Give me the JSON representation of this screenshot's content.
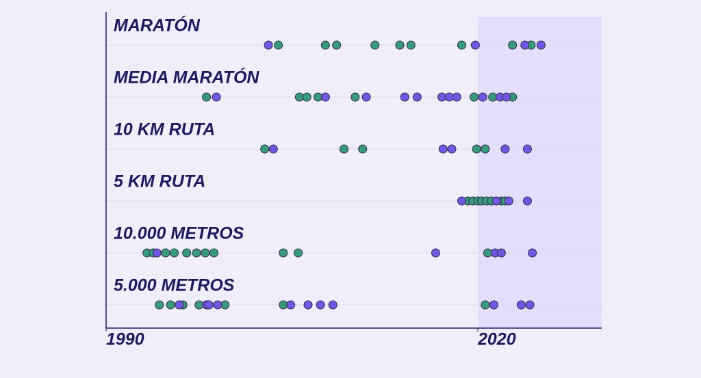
{
  "chart_data": {
    "type": "strip",
    "categories": [
      "MARATÓN",
      "MEDIA MARATÓN",
      "10 KM RUTA",
      "5 KM RUTA",
      "10.000 METROS",
      "5.000 METROS"
    ],
    "xlim": [
      1990,
      2030
    ],
    "xticks": [
      1990,
      2020
    ],
    "series": [
      {
        "color": "#3a9a7e",
        "values": [
          [
            2003.9,
            2007.7,
            2008.6,
            2011.7,
            2013.7,
            2014.6,
            2018.7,
            2022.8,
            2024.3
          ],
          [
            1998.1,
            2005.6,
            2006.2,
            2007.1,
            2010.1,
            2019.7,
            2021.2,
            2022.8
          ],
          [
            2002.8,
            2009.2,
            2010.7,
            2019.9,
            2020.6
          ],
          [
            2019.2,
            2019.6,
            2020.0,
            2020.3,
            2020.7,
            2021.1,
            2021.9,
            2022.2
          ],
          [
            1993.3,
            1993.8,
            1994.8,
            1995.5,
            1996.5,
            1997.3,
            1998.0,
            1998.7,
            2004.3,
            2005.5,
            2020.8
          ],
          [
            1994.3,
            1995.2,
            1996.2,
            1997.5,
            1998.2,
            1999.6,
            2004.3,
            2020.6
          ]
        ]
      },
      {
        "color": "#7158e2",
        "values": [
          [
            2003.1,
            2019.8,
            2023.8,
            2025.1
          ],
          [
            1998.9,
            2007.7,
            2011.0,
            2014.1,
            2015.1,
            2017.1,
            2017.7,
            2018.3,
            2020.4,
            2021.8,
            2022.3
          ],
          [
            2003.5,
            2017.2,
            2017.9,
            2022.2,
            2024.0
          ],
          [
            2018.7,
            2021.5,
            2022.5,
            2024.0
          ],
          [
            1994.1,
            2016.6,
            2021.4,
            2021.9,
            2024.4
          ],
          [
            1995.9,
            1998.1,
            1998.3,
            1999.0,
            2004.9,
            2006.3,
            2007.3,
            2008.3,
            2021.3,
            2023.5,
            2024.2
          ]
        ]
      }
    ]
  }
}
